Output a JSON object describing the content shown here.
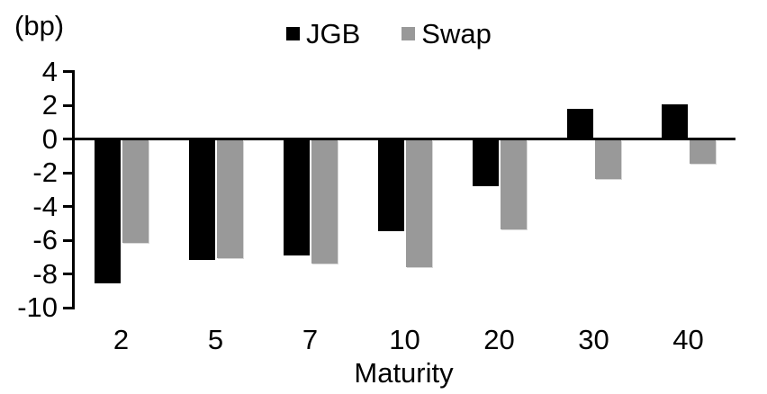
{
  "chart_data": {
    "type": "bar",
    "title": "",
    "unit_label": "(bp)",
    "xlabel": "Maturity",
    "ylabel": "",
    "categories": [
      "2",
      "5",
      "7",
      "10",
      "20",
      "30",
      "40"
    ],
    "series": [
      {
        "name": "JGB",
        "color": "#000000",
        "values": [
          -8.5,
          -7.1,
          -6.8,
          -5.4,
          -2.7,
          1.7,
          2.0
        ]
      },
      {
        "name": "Swap",
        "color": "#999999",
        "values": [
          -6.1,
          -7.0,
          -7.3,
          -7.5,
          -5.3,
          -2.3,
          -1.4
        ]
      }
    ],
    "yticks": [
      4,
      2,
      0,
      -2,
      -4,
      -6,
      -8,
      -10
    ],
    "ylim": [
      -10,
      4
    ],
    "legend_position": "top-center",
    "grid": false,
    "axis_color": "#000000",
    "background_color": "#ffffff"
  }
}
